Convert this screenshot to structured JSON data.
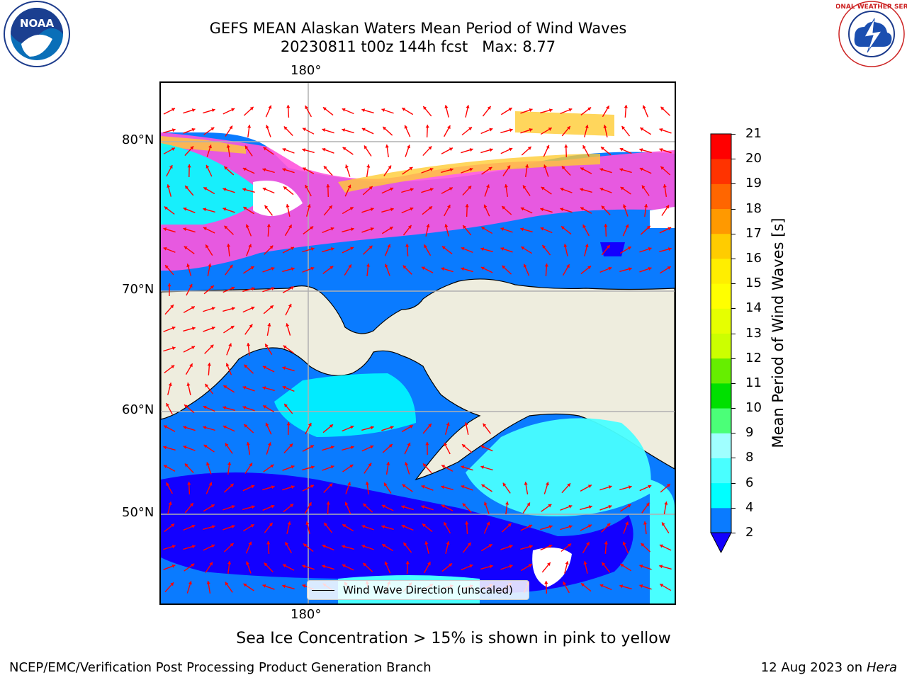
{
  "title_line1": "GEFS MEAN Alaskan Waters Mean Period of Wind Waves",
  "title_line2": "20230811 t00z 144h fcst   Max: 8.77",
  "logos": {
    "left": "NOAA",
    "right": "NATIONAL WEATHER SERVICE"
  },
  "lon_label_top": "180°",
  "lon_label_bottom": "180°",
  "lat_labels": [
    "80°N",
    "70°N",
    "60°N",
    "50°N"
  ],
  "legend_label": "Wind Wave Direction (unscaled)",
  "colorbar": {
    "title": "Mean Period of Wind Waves [s]",
    "ticks": [
      "2",
      "4",
      "6",
      "8",
      "9",
      "10",
      "11",
      "12",
      "13",
      "14",
      "15",
      "16",
      "17",
      "18",
      "19",
      "20",
      "21"
    ],
    "colors": [
      "#0a7bff",
      "#00ffff",
      "#49ffff",
      "#a0ffff",
      "#4bff78",
      "#00e000",
      "#66ee00",
      "#ccff00",
      "#e6ff00",
      "#ffff00",
      "#ffee00",
      "#ffcc00",
      "#ff9900",
      "#ff6600",
      "#ff3300",
      "#ff0000"
    ],
    "under_color": "#1300ff"
  },
  "caption": "Sea Ice Concentration > 15% is shown in pink to yellow",
  "footer_left": "NCEP/EMC/Verification Post Processing Product Generation Branch",
  "footer_date": "12 Aug 2023",
  "footer_on": "on",
  "footer_host": "Hera"
}
